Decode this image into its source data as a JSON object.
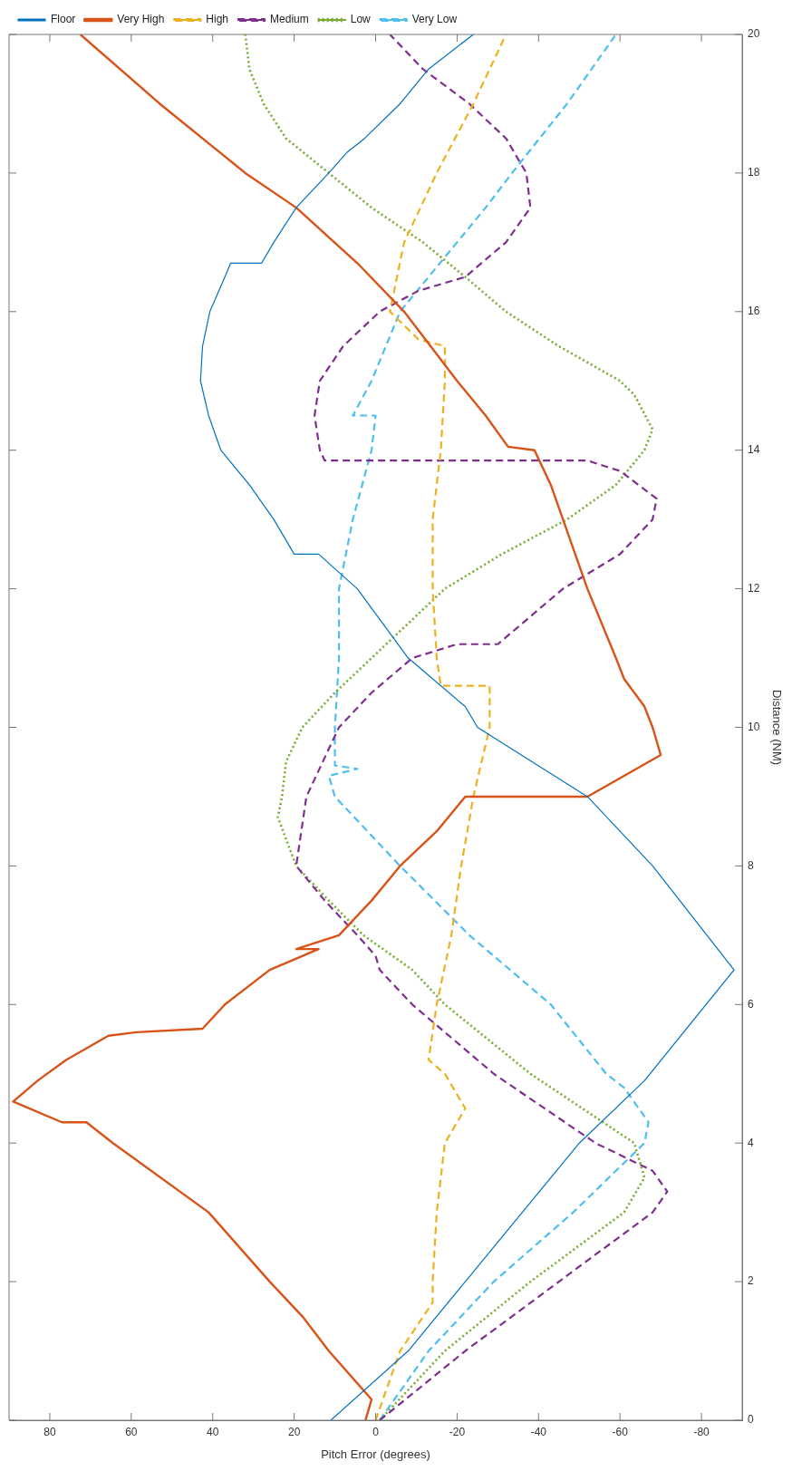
{
  "chart_data": {
    "type": "line",
    "xlabel": "Pitch Error (degrees)",
    "ylabel": "Distance (NM)",
    "xlim": [
      90,
      -90
    ],
    "xticks": [
      80,
      60,
      40,
      20,
      0,
      -20,
      -40,
      -60,
      -80
    ],
    "ylim": [
      0,
      20
    ],
    "yticks": [
      0,
      2,
      4,
      6,
      8,
      10,
      12,
      14,
      16,
      18,
      20
    ],
    "grid": false,
    "legend": "top left",
    "series": [
      {
        "name": "Floor",
        "color": "#0072bd",
        "line_style": "solid",
        "values": [
          0,
          1,
          2,
          4,
          4.9,
          6.5,
          8,
          9,
          10,
          10.3,
          11,
          12,
          12.5,
          12.5,
          13,
          13.5,
          14,
          14.5,
          15,
          15.5,
          16,
          16.5,
          16.7,
          16.7,
          17,
          17.5,
          18,
          18.3,
          18.5,
          19,
          19.5,
          20
        ],
        "x": [
          11,
          -8,
          -22,
          -50,
          -66,
          -88,
          -68,
          -52,
          -25,
          -22,
          -8,
          4.5,
          14,
          20,
          25,
          31,
          38,
          41,
          43,
          42.5,
          40.7,
          37,
          35.6,
          28,
          25,
          19.5,
          11.5,
          7,
          2.7,
          -6,
          -13,
          -24
        ]
      },
      {
        "name": "Very High",
        "color": "#d95319",
        "line_style": "solid",
        "values": [
          0,
          0.3,
          1,
          1.5,
          2,
          3,
          4,
          4.3,
          4.3,
          4.6,
          4.9,
          5.2,
          5.55,
          5.6,
          5.65,
          6,
          6.5,
          6.8,
          6.8,
          7,
          7.5,
          8,
          8.5,
          9,
          9,
          9.3,
          9.6,
          10,
          10.3,
          10.7,
          11,
          12,
          13,
          13.5,
          14,
          14.05,
          14.5,
          15,
          16,
          16.7,
          17.5,
          18,
          19,
          20
        ],
        "x": [
          2.5,
          1,
          11.5,
          18,
          26,
          41,
          64.5,
          71,
          77,
          89,
          83,
          76,
          65.6,
          58.7,
          42.5,
          37,
          26,
          14,
          19.5,
          9,
          1,
          -6,
          -15,
          -22,
          -52,
          -61,
          -70,
          -68,
          -66,
          -61,
          -59,
          -52,
          -46,
          -43,
          -39,
          -32.5,
          -27,
          -20,
          -7,
          4.5,
          19.5,
          32,
          53,
          72.5
        ]
      },
      {
        "name": "High",
        "color": "#edb120",
        "line_style": "dashed",
        "values": [
          0,
          1,
          1.7,
          2,
          3,
          4,
          4.5,
          5,
          5.2,
          6,
          7,
          8,
          9,
          10,
          10.6,
          10.6,
          11,
          12,
          13,
          14,
          15,
          15.5,
          15.6,
          16,
          17,
          18,
          19,
          20
        ],
        "x": [
          0,
          -6,
          -14,
          -14,
          -15,
          -17,
          -22,
          -17,
          -13,
          -15,
          -18.6,
          -21,
          -24,
          -28,
          -28,
          -16,
          -15,
          -14,
          -14,
          -16,
          -17,
          -17,
          -10.5,
          -3.5,
          -7,
          -15,
          -24,
          -32
        ]
      },
      {
        "name": "Medium",
        "color": "#7e2f8e",
        "line_style": "dashed",
        "values": [
          0,
          1,
          2,
          3,
          3.3,
          3.6,
          4,
          5,
          6,
          6.5,
          6.7,
          7,
          7.5,
          8,
          9,
          10,
          10.5,
          11,
          11.2,
          11.2,
          12,
          12.5,
          13,
          13.3,
          13.7,
          13.85,
          13.85,
          14,
          14.5,
          15,
          15.5,
          16,
          16.3,
          16.5,
          17,
          17.5,
          18,
          18.5,
          19,
          19.5,
          20
        ],
        "x": [
          -1,
          -22,
          -45,
          -68,
          -71.6,
          -68,
          -54,
          -29,
          -9,
          -1,
          0,
          4.5,
          12.5,
          19.5,
          17,
          9,
          1,
          -9,
          -20,
          -30,
          -46,
          -60,
          -68,
          -69,
          -60,
          -52,
          12.5,
          13.7,
          15,
          13.7,
          8,
          -1,
          -10.5,
          -22,
          -32,
          -38,
          -37,
          -32,
          -23,
          -11.6,
          -3.5
        ]
      },
      {
        "name": "Low",
        "color": "#77ac30",
        "line_style": "dotted",
        "values": [
          0,
          1,
          2,
          3,
          3.5,
          4,
          5,
          6,
          6.5,
          7,
          7.5,
          8,
          8.7,
          9,
          9.5,
          10,
          10.5,
          11,
          11.5,
          12,
          12.5,
          13,
          13.5,
          14,
          14.3,
          14.8,
          15,
          15.5,
          16,
          16.5,
          17,
          17.5,
          18,
          18.5,
          19,
          19.5,
          20
        ],
        "x": [
          -1,
          -17,
          -38,
          -61,
          -66,
          -63.5,
          -38,
          -17,
          -9,
          3,
          11.5,
          19.5,
          24,
          23,
          22,
          18,
          10,
          1,
          -8,
          -17,
          -31,
          -47,
          -59,
          -66,
          -68,
          -63.5,
          -60,
          -45,
          -32,
          -22,
          -11.6,
          1,
          11.5,
          22,
          27.5,
          31,
          32
        ]
      },
      {
        "name": "Very Low",
        "color": "#4dbeee",
        "line_style": "dashed",
        "values": [
          0,
          1,
          2,
          3,
          4,
          4.3,
          4.8,
          5,
          6,
          7,
          8,
          9,
          9.3,
          9.4,
          9.45,
          10,
          11,
          12,
          13,
          14,
          14.5,
          14.5,
          15,
          15.5,
          16,
          16.5,
          17,
          17.5,
          18,
          19,
          20
        ],
        "x": [
          -1,
          -13,
          -29,
          -48.5,
          -66,
          -67,
          -61,
          -56.6,
          -43,
          -23,
          -6,
          10,
          11.5,
          4.5,
          10,
          10,
          9,
          9,
          5.6,
          1,
          0,
          5.6,
          1,
          -2.5,
          -6,
          -13,
          -20,
          -27,
          -33.5,
          -47,
          -59
        ]
      }
    ]
  }
}
